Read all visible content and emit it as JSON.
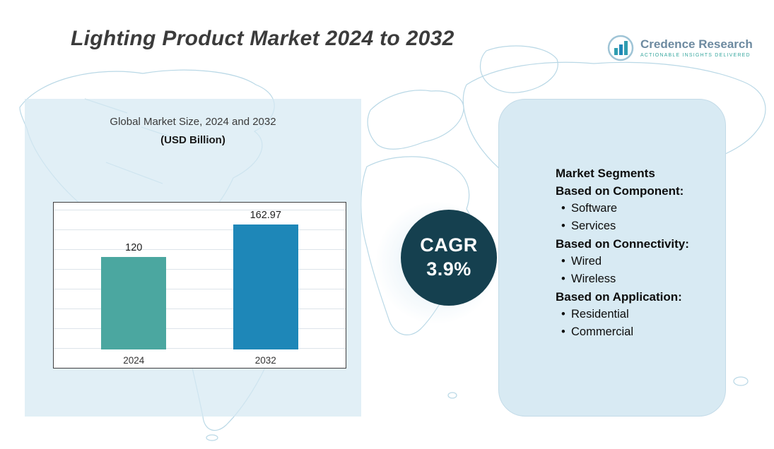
{
  "page": {
    "title": "Lighting Product Market 2024 to 2032"
  },
  "logo": {
    "name": "Credence Research",
    "tagline": "Actionable Insights Delivered"
  },
  "chart": {
    "heading": "Global Market Size, 2024 and 2032",
    "subheading": "(USD Billion)"
  },
  "chart_data": {
    "type": "bar",
    "title": "Global Market Size, 2024 and 2032",
    "ylabel": "USD Billion",
    "categories": [
      "2024",
      "2032"
    ],
    "values": [
      120,
      162.97
    ],
    "value_labels": [
      "120",
      "162.97"
    ],
    "ylim": [
      0,
      180
    ],
    "grid": true,
    "legend": "none",
    "bar_colors": [
      "#4BA7A0",
      "#1E87B8"
    ]
  },
  "cagr": {
    "label": "CAGR",
    "value": "3.9%"
  },
  "segments": {
    "heading": "Market Segments",
    "groups": [
      {
        "label": "Based on Component:",
        "items": [
          "Software",
          "Services"
        ]
      },
      {
        "label": "Based on Connectivity:",
        "items": [
          "Wired",
          "Wireless"
        ]
      },
      {
        "label": "Based on Application:",
        "items": [
          "Residential",
          "Commercial"
        ]
      }
    ]
  },
  "colors": {
    "accent_teal": "#4BA7A0",
    "accent_blue": "#1E87B8",
    "cagr_circle": "#15404F",
    "panel_bg": "#D8EAF3",
    "map_line": "#B9D8E6"
  }
}
